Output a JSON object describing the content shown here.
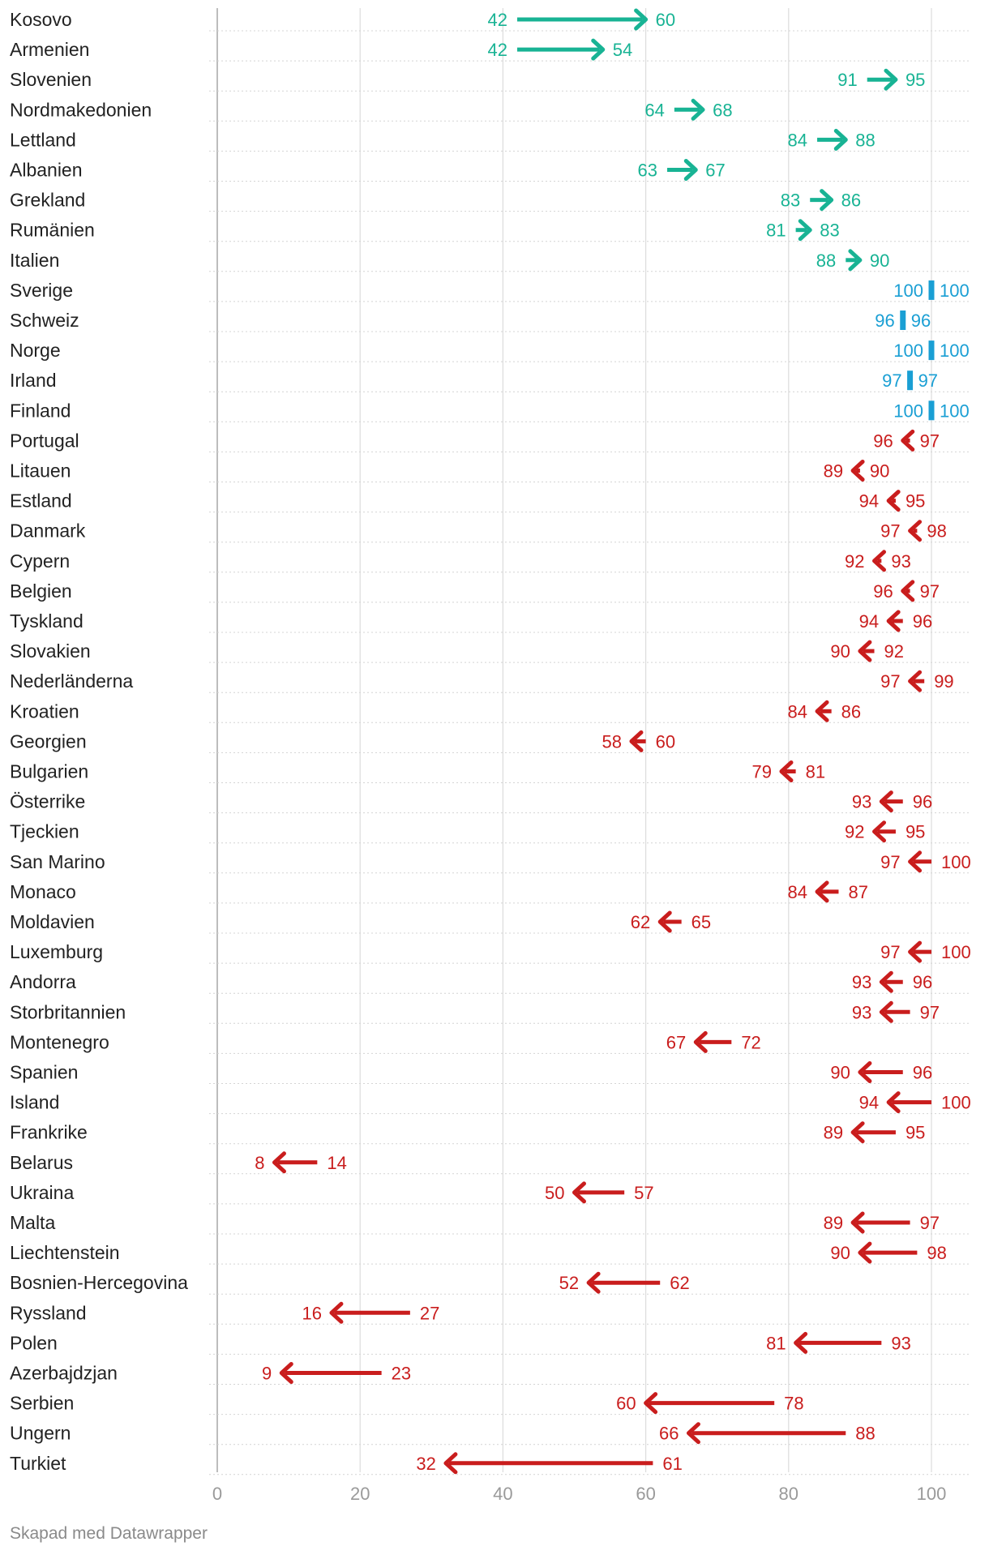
{
  "colors": {
    "increase": "#18b394",
    "unchanged": "#1a9fd4",
    "decrease": "#c91d1d",
    "grid": "#dcdcdc",
    "row_dots": "#d4d4d4",
    "axis": "#bdbdbd"
  },
  "chart_data": {
    "type": "arrow",
    "xlim": [
      0,
      100
    ],
    "x_ticks": [
      "0",
      "20",
      "40",
      "60",
      "80",
      "100"
    ],
    "rows": [
      {
        "country": "Kosovo",
        "from": 42,
        "to": 60
      },
      {
        "country": "Armenien",
        "from": 42,
        "to": 54
      },
      {
        "country": "Slovenien",
        "from": 91,
        "to": 95
      },
      {
        "country": "Nordmakedonien",
        "from": 64,
        "to": 68
      },
      {
        "country": "Lettland",
        "from": 84,
        "to": 88
      },
      {
        "country": "Albanien",
        "from": 63,
        "to": 67
      },
      {
        "country": "Grekland",
        "from": 83,
        "to": 86
      },
      {
        "country": "Rumänien",
        "from": 81,
        "to": 83
      },
      {
        "country": "Italien",
        "from": 88,
        "to": 90
      },
      {
        "country": "Sverige",
        "from": 100,
        "to": 100
      },
      {
        "country": "Schweiz",
        "from": 96,
        "to": 96
      },
      {
        "country": "Norge",
        "from": 100,
        "to": 100
      },
      {
        "country": "Irland",
        "from": 97,
        "to": 97
      },
      {
        "country": "Finland",
        "from": 100,
        "to": 100
      },
      {
        "country": "Portugal",
        "from": 97,
        "to": 96
      },
      {
        "country": "Litauen",
        "from": 90,
        "to": 89
      },
      {
        "country": "Estland",
        "from": 95,
        "to": 94
      },
      {
        "country": "Danmark",
        "from": 98,
        "to": 97
      },
      {
        "country": "Cypern",
        "from": 93,
        "to": 92
      },
      {
        "country": "Belgien",
        "from": 97,
        "to": 96
      },
      {
        "country": "Tyskland",
        "from": 96,
        "to": 94
      },
      {
        "country": "Slovakien",
        "from": 92,
        "to": 90
      },
      {
        "country": "Nederländerna",
        "from": 99,
        "to": 97
      },
      {
        "country": "Kroatien",
        "from": 86,
        "to": 84
      },
      {
        "country": "Georgien",
        "from": 60,
        "to": 58
      },
      {
        "country": "Bulgarien",
        "from": 81,
        "to": 79
      },
      {
        "country": "Österrike",
        "from": 96,
        "to": 93
      },
      {
        "country": "Tjeckien",
        "from": 95,
        "to": 92
      },
      {
        "country": "San Marino",
        "from": 100,
        "to": 97
      },
      {
        "country": "Monaco",
        "from": 87,
        "to": 84
      },
      {
        "country": "Moldavien",
        "from": 65,
        "to": 62
      },
      {
        "country": "Luxemburg",
        "from": 100,
        "to": 97
      },
      {
        "country": "Andorra",
        "from": 96,
        "to": 93
      },
      {
        "country": "Storbritannien",
        "from": 97,
        "to": 93
      },
      {
        "country": "Montenegro",
        "from": 72,
        "to": 67
      },
      {
        "country": "Spanien",
        "from": 96,
        "to": 90
      },
      {
        "country": "Island",
        "from": 100,
        "to": 94
      },
      {
        "country": "Frankrike",
        "from": 95,
        "to": 89
      },
      {
        "country": "Belarus",
        "from": 14,
        "to": 8
      },
      {
        "country": "Ukraina",
        "from": 57,
        "to": 50
      },
      {
        "country": "Malta",
        "from": 97,
        "to": 89
      },
      {
        "country": "Liechtenstein",
        "from": 98,
        "to": 90
      },
      {
        "country": "Bosnien-Hercegovina",
        "from": 62,
        "to": 52
      },
      {
        "country": "Ryssland",
        "from": 27,
        "to": 16
      },
      {
        "country": "Polen",
        "from": 93,
        "to": 81
      },
      {
        "country": "Azerbajdzjan",
        "from": 23,
        "to": 9
      },
      {
        "country": "Serbien",
        "from": 78,
        "to": 60
      },
      {
        "country": "Ungern",
        "from": 88,
        "to": 66
      },
      {
        "country": "Turkiet",
        "from": 61,
        "to": 32
      }
    ]
  },
  "footer": {
    "credit": "Skapad med Datawrapper"
  }
}
